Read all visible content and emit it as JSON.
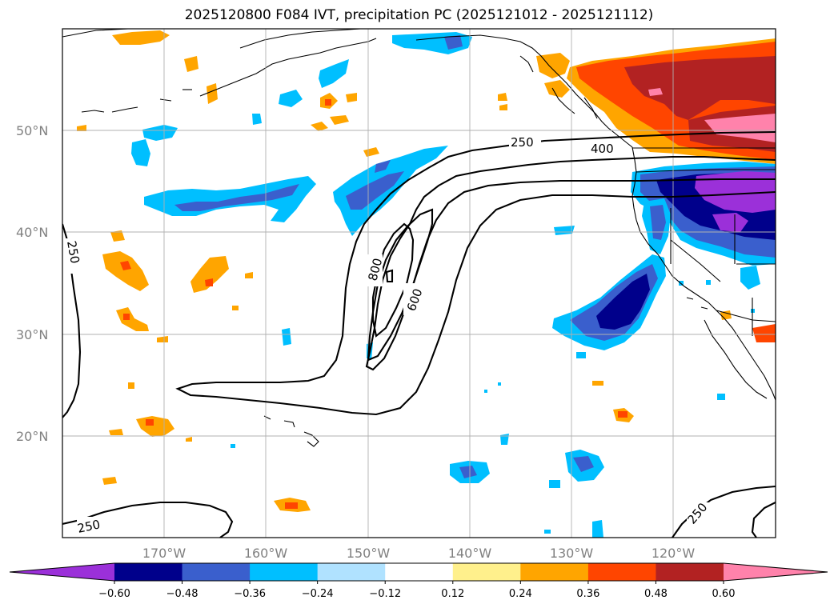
{
  "title": "2025120800 F084 IVT, precipitation PC (2025121012 - 2025121112)",
  "map": {
    "lat_labels": [
      "50°N",
      "40°N",
      "30°N",
      "20°N"
    ],
    "lon_labels": [
      "170°W",
      "160°W",
      "150°W",
      "140°W",
      "130°W",
      "120°W"
    ],
    "ivt_contour_labels": [
      "250",
      "400",
      "250",
      "800",
      "600",
      "250",
      "250"
    ]
  },
  "colorbar": {
    "tick_labels": [
      "−0.60",
      "−0.48",
      "−0.36",
      "−0.24",
      "−0.12",
      "0.12",
      "0.24",
      "0.36",
      "0.48",
      "0.60"
    ],
    "colors": [
      "#9b30d9",
      "#00008b",
      "#3a5fcd",
      "#00bfff",
      "#b0e2ff",
      "#ffffff",
      "#fff08c",
      "#ffa500",
      "#ff4500",
      "#b22222",
      "#ff82ab"
    ]
  }
}
